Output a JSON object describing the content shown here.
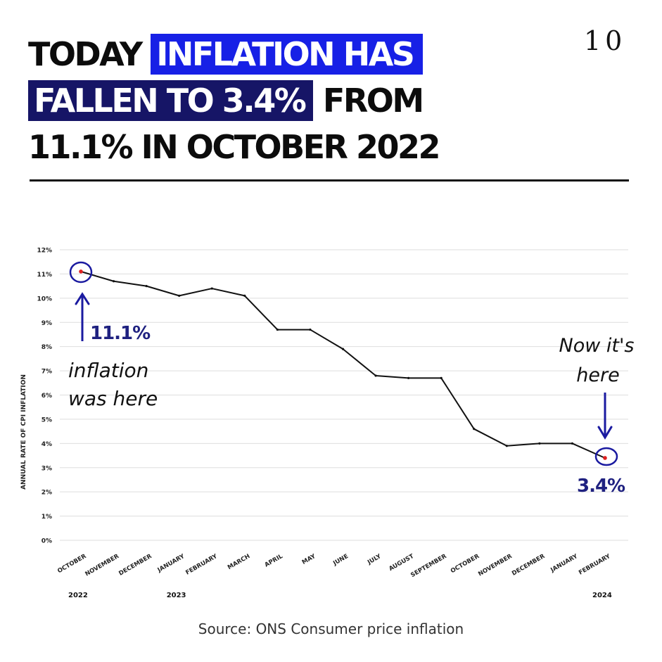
{
  "headline": {
    "line1": [
      "TODAY ",
      "INFLATION HAS"
    ],
    "line2": [
      "FALLEN TO 3.4%",
      " FROM"
    ],
    "line3": "11.1% IN OCTOBER 2022"
  },
  "logo": "10",
  "source": "Source: ONS Consumer price inflation",
  "colors": {
    "highlight_blue": "#1720e6",
    "highlight_navy": "#161566",
    "annotation": "#1a1aa0",
    "marker": "#e02020"
  },
  "chart_data": {
    "type": "line",
    "ylabel": "ANNUAL RATE OF CPI INFLATION",
    "ylim": [
      0,
      12
    ],
    "yticks": [
      "0%",
      "1%",
      "2%",
      "3%",
      "4%",
      "5%",
      "6%",
      "7%",
      "8%",
      "9%",
      "10%",
      "11%",
      "12%"
    ],
    "categories": [
      "OCTOBER",
      "NOVEMBER",
      "DECEMBER",
      "JANUARY",
      "FEBRUARY",
      "MARCH",
      "APRIL",
      "MAY",
      "JUNE",
      "JULY",
      "AUGUST",
      "SEPTEMBER",
      "OCTOBER",
      "NOVEMBER",
      "DECEMBER",
      "JANUARY",
      "FEBRUARY"
    ],
    "year_labels": [
      {
        "index": 0,
        "label": "2022"
      },
      {
        "index": 3,
        "label": "2023"
      },
      {
        "index": 16,
        "label": "2024"
      }
    ],
    "values": [
      11.1,
      10.7,
      10.5,
      10.1,
      10.4,
      10.1,
      8.7,
      8.7,
      7.9,
      6.8,
      6.7,
      6.7,
      4.6,
      3.9,
      4.0,
      4.0,
      3.4
    ],
    "grid": true,
    "annotations": [
      {
        "index": 0,
        "value_label": "11.1%",
        "text": [
          "inflation",
          "was here"
        ]
      },
      {
        "index": 16,
        "value_label": "3.4%",
        "text": [
          "Now it's",
          "here"
        ]
      }
    ]
  }
}
